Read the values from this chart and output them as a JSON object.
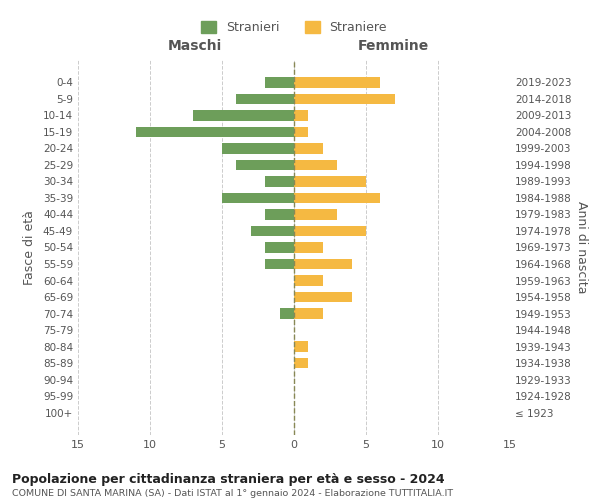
{
  "age_groups": [
    "0-4",
    "5-9",
    "10-14",
    "15-19",
    "20-24",
    "25-29",
    "30-34",
    "35-39",
    "40-44",
    "45-49",
    "50-54",
    "55-59",
    "60-64",
    "65-69",
    "70-74",
    "75-79",
    "80-84",
    "85-89",
    "90-94",
    "95-99",
    "100+"
  ],
  "birth_years": [
    "2019-2023",
    "2014-2018",
    "2009-2013",
    "2004-2008",
    "1999-2003",
    "1994-1998",
    "1989-1993",
    "1984-1988",
    "1979-1983",
    "1974-1978",
    "1969-1973",
    "1964-1968",
    "1959-1963",
    "1954-1958",
    "1949-1953",
    "1944-1948",
    "1939-1943",
    "1934-1938",
    "1929-1933",
    "1924-1928",
    "≤ 1923"
  ],
  "maschi": [
    2,
    4,
    7,
    11,
    5,
    4,
    2,
    5,
    2,
    3,
    2,
    2,
    0,
    0,
    1,
    0,
    0,
    0,
    0,
    0,
    0
  ],
  "femmine": [
    6,
    7,
    1,
    1,
    2,
    3,
    5,
    6,
    3,
    5,
    2,
    4,
    2,
    4,
    2,
    0,
    1,
    1,
    0,
    0,
    0
  ],
  "color_maschi": "#6d9e5a",
  "color_femmine": "#f5b942",
  "xlim": 15,
  "title": "Popolazione per cittadinanza straniera per età e sesso - 2024",
  "subtitle": "COMUNE DI SANTA MARINA (SA) - Dati ISTAT al 1° gennaio 2024 - Elaborazione TUTTITALIA.IT",
  "ylabel_left": "Fasce di età",
  "ylabel_right": "Anni di nascita",
  "legend_maschi": "Stranieri",
  "legend_femmine": "Straniere",
  "header_left": "Maschi",
  "header_right": "Femmine",
  "bg_color": "#ffffff",
  "grid_color": "#cccccc",
  "tick_color": "#888888",
  "label_color": "#555555"
}
